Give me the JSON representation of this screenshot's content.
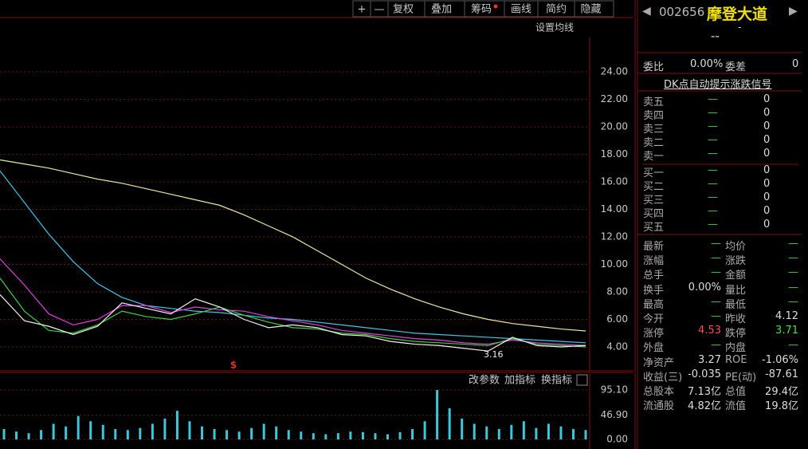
{
  "toolbar": {
    "buttons": [
      "+",
      "—",
      "复权",
      "叠加",
      "筹码",
      "画线",
      "简约",
      "隐藏"
    ],
    "settings_label": "设置均线"
  },
  "stock": {
    "code": "002656",
    "name": "摩登大道",
    "price": "--",
    "change": "-"
  },
  "chart_data": {
    "type": "line",
    "ylim": [
      2.26,
      26.5
    ],
    "yticks": [
      {
        "value": 4,
        "label": "4.00"
      },
      {
        "value": 6,
        "label": "6.00"
      },
      {
        "value": 8,
        "label": "8.00"
      },
      {
        "value": 10,
        "label": "10.00"
      },
      {
        "value": 12,
        "label": "12.00"
      },
      {
        "value": 14,
        "label": "14.00"
      },
      {
        "value": 16,
        "label": "16.00"
      },
      {
        "value": 18,
        "label": "18.00"
      },
      {
        "value": 20,
        "label": "20.00"
      },
      {
        "value": 22,
        "label": "22.00"
      },
      {
        "value": 24,
        "label": "24.00"
      }
    ],
    "grid": true,
    "series": [
      {
        "color": "#e8e8a0",
        "values": [
          17.6,
          17.3,
          17.0,
          16.6,
          16.2,
          15.9,
          15.5,
          15.1,
          14.7,
          14.3,
          13.6,
          12.8,
          12.0,
          11.0,
          10.0,
          9.0,
          8.2,
          7.5,
          6.9,
          6.4,
          6.0,
          5.7,
          5.5,
          5.3,
          5.16
        ]
      },
      {
        "color": "#40c8e8",
        "values": [
          16.8,
          14.5,
          12.2,
          10.2,
          8.6,
          7.6,
          7.0,
          6.8,
          6.6,
          6.5,
          6.3,
          6.1,
          6.0,
          5.8,
          5.6,
          5.4,
          5.2,
          5.0,
          4.9,
          4.8,
          4.7,
          4.6,
          4.5,
          4.4,
          4.3
        ]
      },
      {
        "color": "#e040e0",
        "values": [
          10.4,
          8.5,
          6.4,
          5.6,
          6.0,
          7.0,
          7.0,
          6.5,
          6.9,
          6.7,
          6.6,
          6.2,
          5.9,
          5.6,
          5.2,
          5.0,
          4.8,
          4.6,
          4.5,
          4.3,
          4.2,
          4.5,
          4.3,
          4.2,
          4.1
        ]
      },
      {
        "color": "#40d040",
        "values": [
          9.0,
          6.6,
          5.2,
          5.0,
          5.6,
          6.6,
          6.2,
          6.0,
          6.4,
          6.9,
          6.3,
          5.8,
          5.4,
          5.3,
          5.0,
          4.9,
          4.6,
          4.4,
          4.3,
          4.2,
          4.1,
          4.6,
          4.2,
          4.1,
          4.0
        ]
      },
      {
        "color": "#f0f0f0",
        "values": [
          7.8,
          5.9,
          5.5,
          4.9,
          5.5,
          7.2,
          6.8,
          6.4,
          7.5,
          6.9,
          6.0,
          5.4,
          5.6,
          5.4,
          4.9,
          4.8,
          4.4,
          4.2,
          4.1,
          3.9,
          3.7,
          4.7,
          4.1,
          4.0,
          4.1
        ]
      }
    ],
    "annotations": [
      "3.16",
      "$"
    ]
  },
  "volume_chart": {
    "type": "bar",
    "color": "#3cc8d8",
    "ylim": [
      -18.4,
      127.3
    ],
    "yticks": [
      {
        "value": 0,
        "label": "0.00"
      },
      {
        "value": 46.9,
        "label": "46.90"
      },
      {
        "value": 95.1,
        "label": "95.10"
      }
    ],
    "values": [
      20,
      15,
      12,
      18,
      30,
      25,
      45,
      35,
      28,
      20,
      18,
      22,
      30,
      40,
      55,
      35,
      25,
      20,
      18,
      15,
      22,
      30,
      25,
      18,
      15,
      12,
      10,
      12,
      15,
      14,
      12,
      10,
      14,
      20,
      35,
      95,
      60,
      40,
      30,
      25,
      20,
      28,
      35,
      22,
      30,
      25,
      20,
      18
    ],
    "buttons": [
      "改参数",
      "加指标",
      "换指标"
    ]
  },
  "panel": {
    "ratio": [
      "委比",
      "0.00%",
      "委差",
      "0"
    ],
    "signal": "DK点自动提示涨跌信号",
    "sell": [
      [
        "卖五",
        "—",
        "0"
      ],
      [
        "卖四",
        "—",
        "0"
      ],
      [
        "卖三",
        "—",
        "0"
      ],
      [
        "卖二",
        "—",
        "0"
      ],
      [
        "卖一",
        "—",
        "0"
      ]
    ],
    "buy": [
      [
        "买一",
        "—",
        "0"
      ],
      [
        "买二",
        "—",
        "0"
      ],
      [
        "买三",
        "—",
        "0"
      ],
      [
        "买四",
        "—",
        "0"
      ],
      [
        "买五",
        "—",
        "0"
      ]
    ],
    "stats": [
      [
        "最新",
        "—",
        "均价",
        "—"
      ],
      [
        "涨幅",
        "—",
        "涨跌",
        "—"
      ],
      [
        "总手",
        "—",
        "金额",
        "—"
      ],
      [
        "换手",
        "0.00%",
        "量比",
        "—"
      ],
      [
        "最高",
        "—",
        "最低",
        "—"
      ],
      [
        "今开",
        "—",
        "昨收",
        "4.12"
      ],
      [
        "涨停",
        "4.53",
        "跌停",
        "3.71"
      ],
      [
        "外盘",
        "—",
        "内盘",
        "—"
      ],
      [
        "净资产",
        "3.27",
        "ROE",
        "-1.06%"
      ],
      [
        "收益(三)",
        "-0.035",
        "PE(动)",
        "-87.61"
      ],
      [
        "总股本",
        "7.13亿",
        "总值",
        "29.4亿"
      ],
      [
        "流通股",
        "4.82亿",
        "流值",
        "19.8亿"
      ]
    ]
  }
}
